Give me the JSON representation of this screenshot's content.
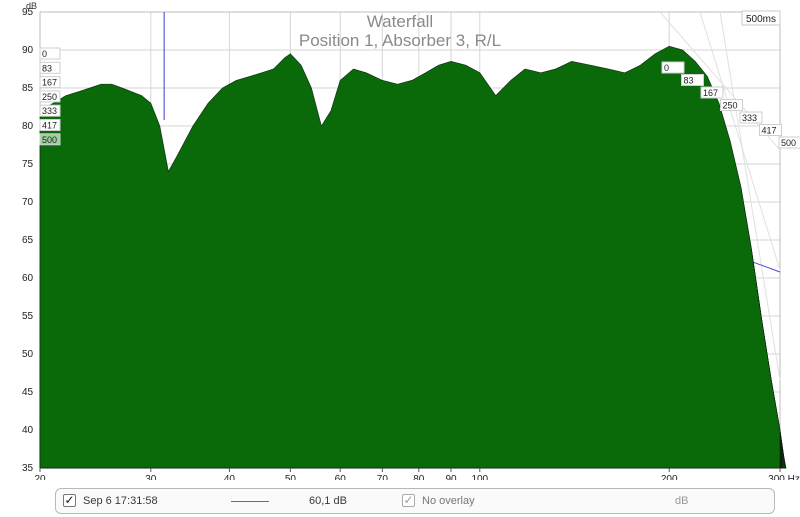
{
  "window": {
    "title": "Waterfall",
    "subtitle": "Position 1, Absorber 3, R/L",
    "time_badge": "500ms"
  },
  "legend": {
    "checkbox_mark": "✓",
    "measurement_label": "Sep 6 17:31:58",
    "measurement_value": "60,1 dB",
    "overlay_label": "No overlay",
    "overlay_unit": "dB",
    "trace_color": "#2e9a2e"
  },
  "chart_data": {
    "type": "area",
    "title": "Waterfall",
    "subtitle": "Position 1, Absorber 3, R/L",
    "ylabel": "dB",
    "xlabel": "Hz",
    "x_scale": "log",
    "xlim": [
      20,
      300
    ],
    "ylim": [
      35,
      95
    ],
    "x_ticks": [
      20,
      30,
      40,
      50,
      60,
      70,
      80,
      90,
      100,
      200,
      300
    ],
    "x_tick_labels": [
      "20",
      "30",
      "40",
      "50",
      "60",
      "70",
      "80",
      "90",
      "100",
      "200",
      "300 Hz"
    ],
    "y_ticks": [
      35,
      40,
      45,
      50,
      55,
      60,
      65,
      70,
      75,
      80,
      85,
      90,
      95
    ],
    "y_tick_labels": [
      "35",
      "40",
      "45",
      "50",
      "55",
      "60",
      "65",
      "70",
      "75",
      "80",
      "85",
      "90",
      "95"
    ],
    "time_slices_ms": [
      "0",
      "83",
      "167",
      "250",
      "333",
      "417",
      "500"
    ],
    "fill_color": "#0a6a0a",
    "grid": true,
    "cursor_hz": 31.5,
    "series": [
      {
        "name": "0",
        "x": [
          20,
          21,
          22,
          23,
          24,
          25,
          26,
          27,
          28,
          29,
          30,
          31,
          32,
          33,
          35,
          37,
          39,
          41,
          43,
          45,
          47,
          49,
          50,
          52,
          54,
          56,
          58,
          60,
          63,
          66,
          70,
          74,
          78,
          82,
          86,
          90,
          95,
          100,
          106,
          112,
          118,
          125,
          132,
          140,
          150,
          160,
          170,
          180,
          190,
          200,
          210,
          220,
          230,
          240,
          250,
          260,
          270,
          280,
          290,
          300
        ],
        "y": [
          82,
          83,
          84,
          84.5,
          85,
          85.5,
          85.5,
          85,
          84.5,
          84,
          83,
          80,
          74,
          76,
          80,
          83,
          85,
          86,
          86.5,
          87,
          87.5,
          89,
          89.5,
          88,
          85,
          80,
          82,
          86,
          87.5,
          87,
          86,
          85.5,
          86,
          87,
          88,
          88.5,
          88,
          87,
          84,
          86,
          87.5,
          87,
          87.5,
          88.5,
          88,
          87.5,
          87,
          88,
          89.5,
          90.5,
          90,
          88.5,
          86.5,
          83,
          78,
          72,
          64,
          55,
          47,
          40
        ]
      }
    ]
  }
}
